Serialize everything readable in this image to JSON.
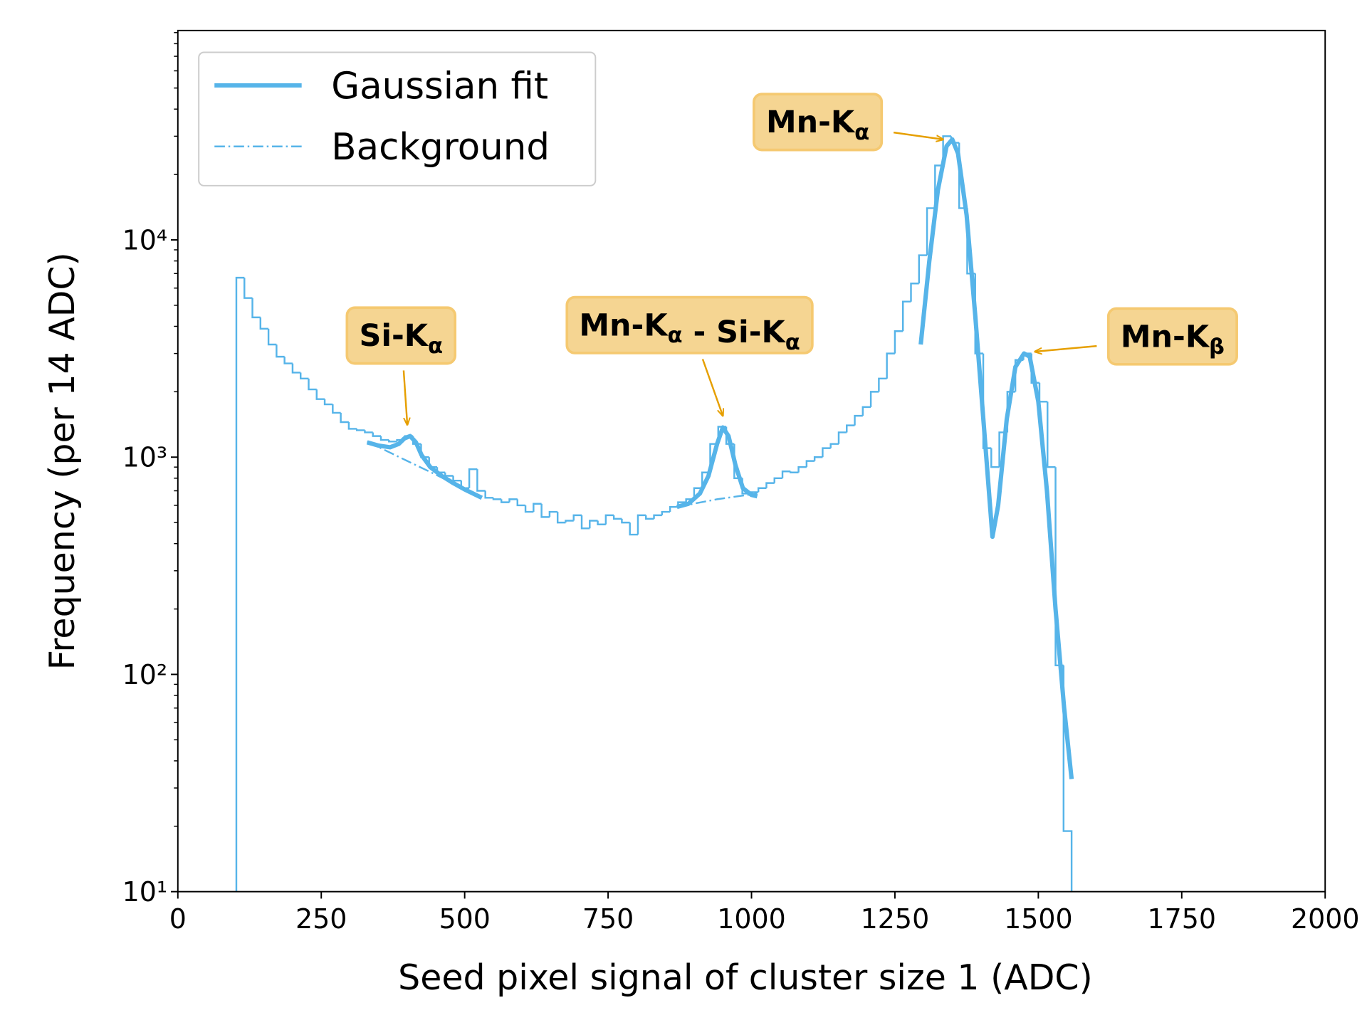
{
  "chart_data": {
    "type": "histogram",
    "xlabel": "Seed pixel signal of cluster size 1 (ADC)",
    "ylabel": "Frequency (per 14 ADC)",
    "xlim": [
      0,
      2000
    ],
    "xticks": [
      0,
      250,
      500,
      750,
      1000,
      1250,
      1500,
      1750,
      2000
    ],
    "ylim": [
      10,
      92000
    ],
    "yscale": "log",
    "yticks": [
      {
        "value": 10,
        "label": "10¹"
      },
      {
        "value": 100,
        "label": "10²"
      },
      {
        "value": 1000,
        "label": "10³"
      },
      {
        "value": 10000,
        "label": "10⁴"
      }
    ],
    "yminorticks": [
      20,
      30,
      40,
      50,
      60,
      70,
      80,
      90,
      200,
      300,
      400,
      500,
      600,
      700,
      800,
      900,
      2000,
      3000,
      4000,
      5000,
      6000,
      7000,
      8000,
      9000,
      20000,
      30000,
      40000,
      50000,
      60000,
      70000,
      80000,
      90000
    ],
    "color": "#56b4e9",
    "bins": [
      102,
      116,
      130,
      144,
      158,
      172,
      186,
      200,
      214,
      228,
      242,
      256,
      270,
      284,
      298,
      312,
      326,
      340,
      354,
      368,
      382,
      396,
      410,
      424,
      438,
      452,
      466,
      480,
      494,
      508,
      522,
      536,
      550,
      564,
      578,
      592,
      606,
      620,
      634,
      648,
      662,
      676,
      690,
      704,
      718,
      732,
      746,
      760,
      774,
      788,
      802,
      816,
      830,
      844,
      858,
      872,
      886,
      900,
      914,
      928,
      942,
      956,
      970,
      984,
      998,
      1012,
      1026,
      1040,
      1054,
      1068,
      1082,
      1096,
      1110,
      1124,
      1138,
      1152,
      1166,
      1180,
      1194,
      1208,
      1222,
      1236,
      1250,
      1264,
      1278,
      1292,
      1306,
      1320,
      1334,
      1348,
      1362,
      1376,
      1390,
      1404,
      1418,
      1432,
      1446,
      1460,
      1474,
      1488,
      1502,
      1516,
      1530,
      1544,
      1558
    ],
    "values": [
      6700,
      5400,
      4400,
      3900,
      3300,
      2900,
      2700,
      2450,
      2300,
      2050,
      1850,
      1750,
      1600,
      1450,
      1350,
      1330,
      1300,
      1250,
      1200,
      1180,
      1200,
      1250,
      1150,
      1000,
      900,
      850,
      820,
      780,
      720,
      880,
      700,
      650,
      640,
      620,
      640,
      600,
      560,
      610,
      530,
      560,
      500,
      510,
      540,
      470,
      510,
      490,
      540,
      520,
      500,
      440,
      540,
      520,
      540,
      560,
      590,
      620,
      640,
      720,
      850,
      1150,
      1380,
      1150,
      800,
      680,
      690,
      720,
      760,
      800,
      860,
      850,
      900,
      960,
      1000,
      1100,
      1150,
      1300,
      1400,
      1550,
      1700,
      2000,
      2300,
      3000,
      3800,
      5200,
      6300,
      8500,
      14000,
      22000,
      30000,
      28000,
      14000,
      7000,
      3000,
      1100,
      900,
      1300,
      2000,
      2800,
      3000,
      2200,
      1800,
      900,
      110,
      19
    ],
    "series": [
      {
        "name": "Gaussian fit",
        "color": "#56b4e9",
        "style": "solid",
        "x": [
          330,
          350,
          370,
          385,
          395,
          405,
          415,
          425,
          440,
          460,
          480,
          500,
          530,
          700,
          870,
          890,
          910,
          925,
          940,
          950,
          960,
          972,
          985,
          1000,
          1010,
          1150,
          1295,
          1310,
          1325,
          1340,
          1350,
          1360,
          1375,
          1390,
          1405,
          1420,
          1430,
          1445,
          1460,
          1475,
          1485,
          1500,
          1515,
          1530,
          1545,
          1558
        ],
        "values": [
          1170,
          1130,
          1110,
          1150,
          1220,
          1250,
          1170,
          1020,
          900,
          820,
          760,
          710,
          650,
          null,
          590,
          610,
          680,
          820,
          1150,
          1370,
          1250,
          920,
          720,
          670,
          660,
          null,
          3300,
          8000,
          17000,
          27000,
          29000,
          25000,
          13000,
          4500,
          1400,
          430,
          600,
          1500,
          2600,
          3000,
          2900,
          1800,
          700,
          200,
          70,
          33
        ]
      },
      {
        "name": "Background",
        "color": "#56b4e9",
        "style": "dashdot",
        "x": [
          330,
          400,
          450,
          530,
          700,
          870,
          940,
          1010
        ],
        "values": [
          1180,
          960,
          830,
          650,
          null,
          590,
          640,
          680
        ]
      }
    ],
    "legend": "upper left",
    "annotations": [
      {
        "parts": [
          {
            "text": "Si-K",
            "sub": "α"
          }
        ],
        "xy": [
          400,
          1410
        ]
      },
      {
        "parts": [
          {
            "text": "Mn-K",
            "sub": "α"
          },
          {
            "text": " - Si-K",
            "sub": "α"
          }
        ],
        "xy": [
          950,
          1550
        ]
      },
      {
        "parts": [
          {
            "text": "Mn-K",
            "sub": "α"
          }
        ],
        "xy": [
          1334,
          29000
        ]
      },
      {
        "parts": [
          {
            "text": "Mn-K",
            "sub": "β"
          }
        ],
        "xy": [
          1494,
          3060
        ]
      }
    ]
  }
}
